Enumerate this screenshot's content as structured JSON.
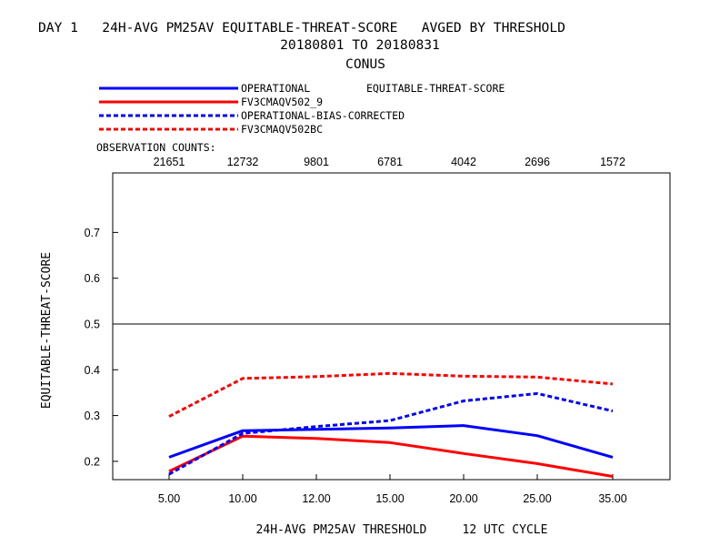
{
  "header": {
    "title_line1": "DAY 1   24H-AVG PM25AV EQUITABLE-THREAT-SCORE   AVGED BY THRESHOLD",
    "title_line2": "20180801 TO 20180831",
    "title_line3": "CONUS"
  },
  "legend": {
    "metric_label": "EQUITABLE-THREAT-SCORE",
    "items": [
      {
        "label": "OPERATIONAL",
        "color": "#0000ff",
        "style": "solid"
      },
      {
        "label": "FV3CMAQV502_9",
        "color": "#ff0000",
        "style": "solid"
      },
      {
        "label": "OPERATIONAL-BIAS-CORRECTED",
        "color": "#0000ff",
        "style": "dashed"
      },
      {
        "label": "FV3CMAQV502BC",
        "color": "#ff0000",
        "style": "dashed"
      }
    ]
  },
  "observation": {
    "label": "OBSERVATION COUNTS:",
    "counts": [
      "21651",
      "12732",
      "9801",
      "6781",
      "4042",
      "2696",
      "1572"
    ]
  },
  "chart_data": {
    "type": "line",
    "categories": [
      "5.00",
      "10.00",
      "12.00",
      "15.00",
      "20.00",
      "25.00",
      "35.00"
    ],
    "series": [
      {
        "name": "OPERATIONAL",
        "color": "#0000ff",
        "style": "solid",
        "values": [
          0.209,
          0.267,
          0.27,
          0.273,
          0.278,
          0.256,
          0.209
        ]
      },
      {
        "name": "FV3CMAQV502_9",
        "color": "#ff0000",
        "style": "solid",
        "values": [
          0.178,
          0.255,
          0.25,
          0.241,
          0.217,
          0.195,
          0.167
        ]
      },
      {
        "name": "OPERATIONAL-BIAS-CORRECTED",
        "color": "#0000ff",
        "style": "dashed",
        "values": [
          0.172,
          0.261,
          0.276,
          0.289,
          0.332,
          0.348,
          0.31
        ]
      },
      {
        "name": "FV3CMAQV502BC",
        "color": "#ff0000",
        "style": "dashed",
        "values": [
          0.298,
          0.381,
          0.385,
          0.392,
          0.386,
          0.384,
          0.369
        ]
      }
    ],
    "ylim": [
      0.16,
      0.83
    ],
    "yticks": [
      "0.2",
      "0.3",
      "0.4",
      "0.5",
      "0.6",
      "0.7"
    ],
    "reference_line": 0.5,
    "xlabel": "24H-AVG PM25AV THRESHOLD     12 UTC CYCLE",
    "ylabel": "EQUITABLE-THREAT-SCORE",
    "grid": false
  }
}
